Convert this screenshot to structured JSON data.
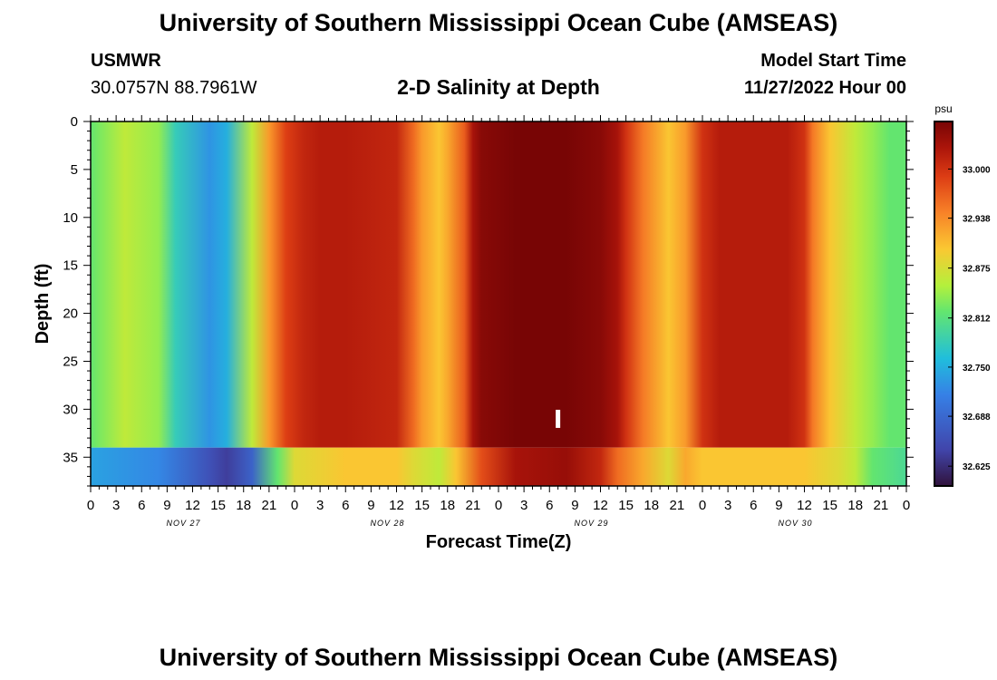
{
  "header": {
    "title": "University of Southern Mississippi Ocean Cube (AMSEAS)",
    "station": "USMWR",
    "coords": "30.0757N  88.7961W",
    "plot_title": "2-D Salinity at Depth",
    "model_start_label": "Model Start Time",
    "model_start_value": "11/27/2022 Hour 00"
  },
  "footer": {
    "title": "University of Southern Mississippi Ocean Cube (AMSEAS)"
  },
  "chart_data": {
    "type": "heatmap",
    "title": "2-D Salinity at Depth",
    "xlabel": "Forecast Time(Z)",
    "ylabel": "Depth (ft)",
    "x_ticks": [
      "0",
      "3",
      "6",
      "9",
      "12",
      "15",
      "18",
      "21",
      "0",
      "3",
      "6",
      "9",
      "12",
      "15",
      "18",
      "21",
      "0",
      "3",
      "6",
      "9",
      "12",
      "15",
      "18",
      "21",
      "0",
      "3",
      "6",
      "9",
      "12",
      "15",
      "18",
      "21",
      "0"
    ],
    "x_day_labels": [
      "NOV 27",
      "NOV 28",
      "NOV 29",
      "NOV 30"
    ],
    "y_ticks": [
      0,
      5,
      10,
      15,
      20,
      25,
      30,
      35
    ],
    "ylim": [
      0,
      38
    ],
    "xlim_hours": [
      0,
      96
    ],
    "colorbar": {
      "unit": "psu",
      "ticks": [
        "33.000",
        "32.938",
        "32.875",
        "32.812",
        "32.750",
        "32.688",
        "32.625"
      ],
      "range": [
        32.6,
        33.06
      ]
    },
    "current_time_marker_hour": 55,
    "current_time_marker_depth": 31,
    "surface_profile": {
      "hours": [
        0,
        1,
        4,
        8,
        10,
        14,
        16,
        19,
        21,
        23,
        25,
        27,
        30,
        36,
        38,
        39,
        41,
        42,
        44,
        45,
        46,
        50,
        56,
        60,
        62,
        63,
        65,
        68,
        70,
        72,
        74,
        75,
        78,
        82,
        84,
        85,
        87,
        90,
        92,
        94,
        96
      ],
      "values": [
        32.82,
        32.83,
        32.86,
        32.84,
        32.78,
        32.73,
        32.75,
        32.86,
        32.93,
        32.99,
        33.01,
        33.02,
        33.02,
        33.01,
        32.96,
        32.93,
        32.9,
        32.92,
        32.97,
        33.03,
        33.05,
        33.06,
        33.06,
        33.05,
        33.03,
        33.0,
        32.95,
        32.9,
        32.93,
        33.0,
        33.02,
        33.02,
        33.02,
        33.02,
        33.0,
        32.95,
        32.9,
        32.86,
        32.84,
        32.82,
        32.82
      ]
    },
    "bottom_layer": {
      "depth_range_ft": [
        34,
        38
      ],
      "hours": [
        0,
        8,
        14,
        16,
        19,
        22,
        24,
        30,
        36,
        38,
        41,
        43,
        46,
        50,
        56,
        60,
        62,
        65,
        68,
        70,
        72,
        78,
        84,
        88,
        90,
        92,
        96
      ],
      "values": [
        32.74,
        32.72,
        32.66,
        32.64,
        32.68,
        32.82,
        32.88,
        32.9,
        32.9,
        32.88,
        32.86,
        32.9,
        32.98,
        33.03,
        33.04,
        33.01,
        32.96,
        32.92,
        32.88,
        32.92,
        32.9,
        32.9,
        32.9,
        32.88,
        32.86,
        32.82,
        32.8
      ]
    }
  }
}
